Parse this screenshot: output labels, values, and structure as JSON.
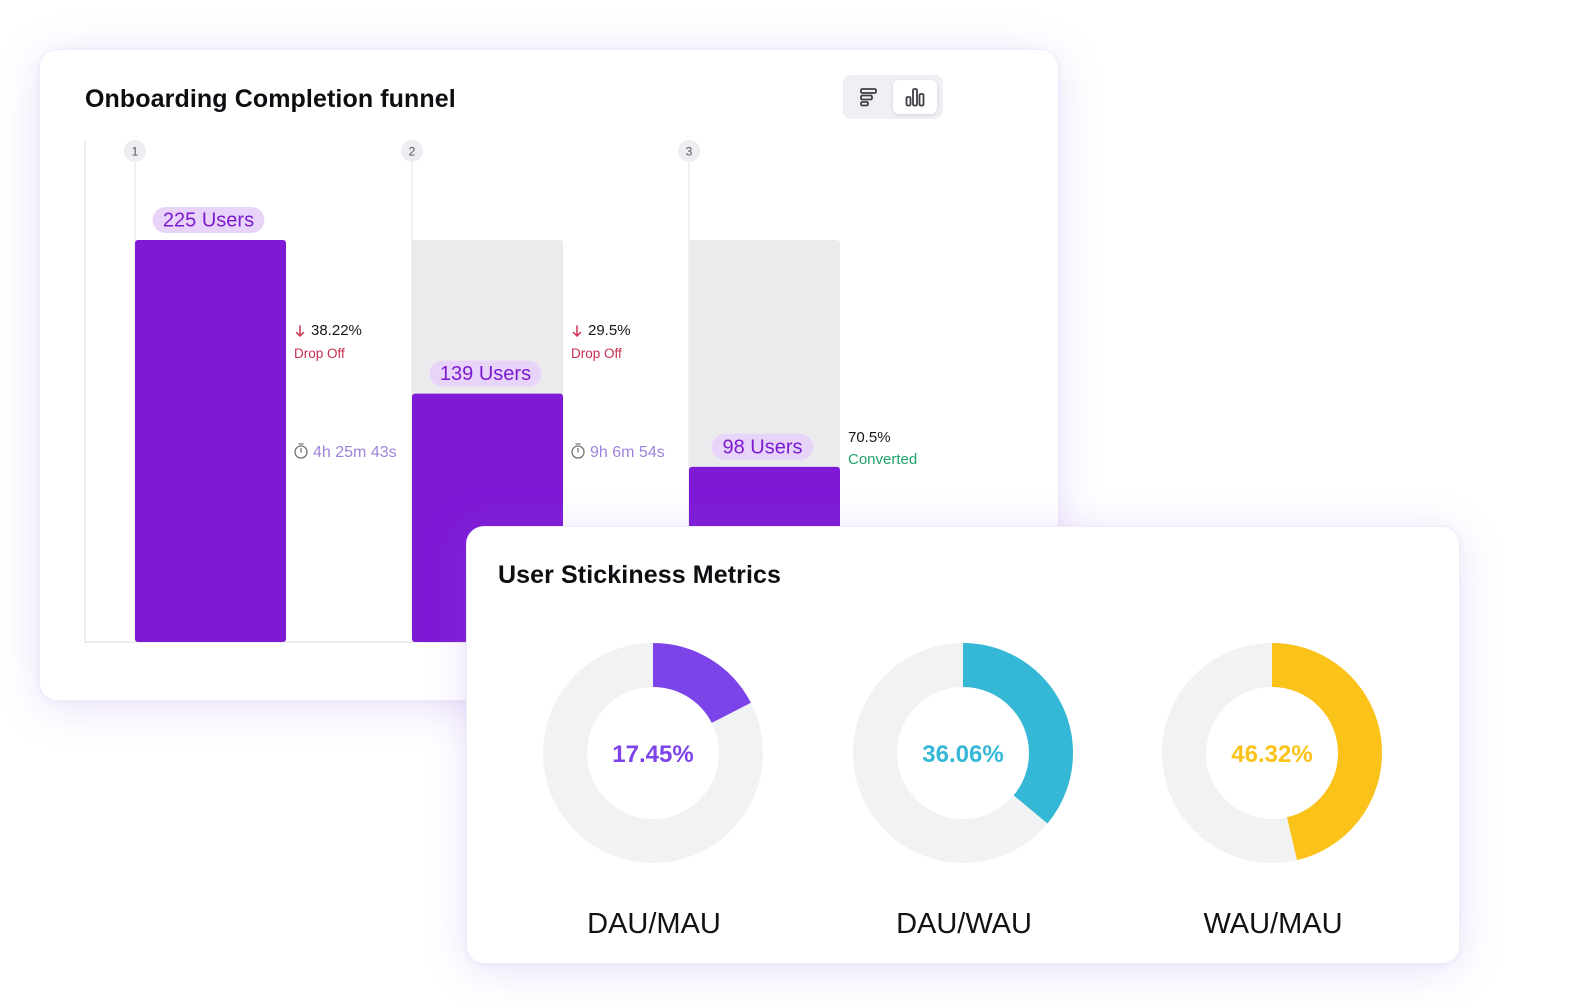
{
  "funnel": {
    "title": "Onboarding Completion funnel",
    "toggle": {
      "options": [
        "horizontal-bars-icon",
        "vertical-bars-icon"
      ],
      "selected": "vertical-bars-icon"
    }
  },
  "stickiness": {
    "title": "User Stickiness Metrics"
  },
  "chart_data": [
    {
      "type": "bar",
      "title": "Onboarding Completion funnel",
      "categories": [
        "1",
        "2",
        "3"
      ],
      "values": [
        225,
        139,
        98
      ],
      "value_labels": [
        "225 Users",
        "139 Users",
        "98 Users"
      ],
      "ylim": [
        0,
        225
      ],
      "grid": false,
      "annotations": [
        {
          "after_step": "1",
          "percent": "38.22%",
          "label": "Drop Off",
          "time": "4h 25m 43s"
        },
        {
          "after_step": "2",
          "percent": "29.5%",
          "label": "Drop Off",
          "time": "9h 6m 54s"
        },
        {
          "after_step": "3",
          "percent": "70.5%",
          "label": "Converted"
        }
      ],
      "colors": {
        "bar": "#7e1ad6",
        "ghost": "#ebebee",
        "label_bg": "#e8d4f9",
        "label_text": "#7c1ad0",
        "drop_pct": "#16161c",
        "drop_label": "#c52f4f",
        "arrow": "#d0314f",
        "time": "#9f82dc",
        "converted": "#20a36a"
      }
    },
    {
      "type": "pie",
      "title": "User Stickiness Metrics",
      "series": [
        {
          "name": "DAU/MAU",
          "value": 17.45,
          "label": "17.45%",
          "color": "#7c44e8"
        },
        {
          "name": "DAU/WAU",
          "value": 36.06,
          "label": "36.06%",
          "color": "#35b7d6"
        },
        {
          "name": "WAU/MAU",
          "value": 46.32,
          "label": "46.32%",
          "color": "#fbc21a"
        }
      ],
      "track_color": "#f1f2f3"
    }
  ]
}
